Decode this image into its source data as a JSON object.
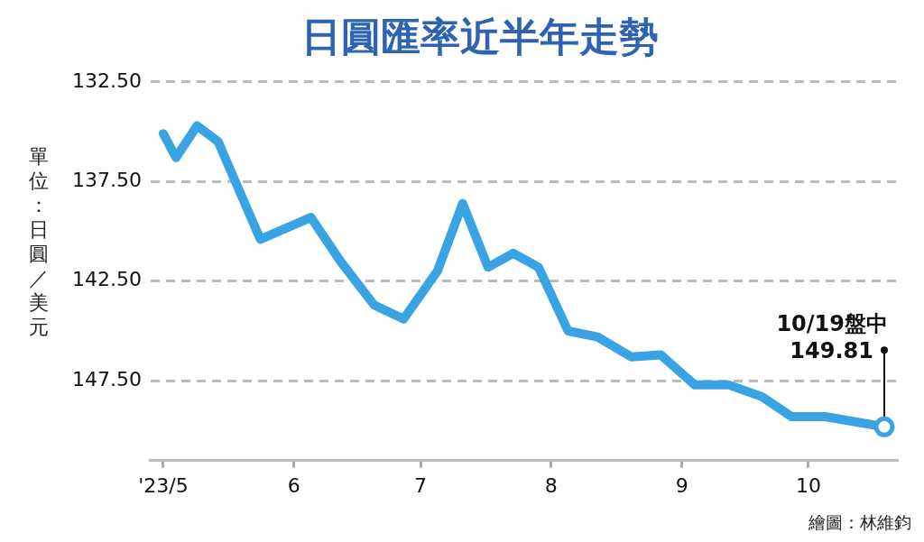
{
  "chart_data": {
    "type": "line",
    "title": "日圓匯率近半年走勢",
    "ylabel": "單位：日圓／美元",
    "x": [
      "2023-05-01",
      "2023-05-04",
      "2023-05-09",
      "2023-05-14",
      "2023-05-24",
      "2023-06-05",
      "2023-06-12",
      "2023-06-20",
      "2023-06-27",
      "2023-07-05",
      "2023-07-11",
      "2023-07-17",
      "2023-07-23",
      "2023-07-29",
      "2023-08-05",
      "2023-08-12",
      "2023-08-20",
      "2023-08-27",
      "2023-09-04",
      "2023-09-12",
      "2023-09-20",
      "2023-09-27",
      "2023-10-05",
      "2023-10-19"
    ],
    "series": [
      {
        "color": "#3aa3e3",
        "values": [
          135.1,
          136.3,
          134.7,
          135.5,
          140.4,
          139.3,
          141.5,
          143.7,
          144.4,
          142.0,
          138.6,
          141.8,
          141.1,
          141.8,
          145.0,
          145.3,
          146.3,
          146.2,
          147.7,
          147.7,
          148.3,
          149.3,
          149.3,
          149.81
        ]
      }
    ],
    "xlim": [
      "2023-04-28",
      "2023-10-22"
    ],
    "xticks": [
      {
        "value": "2023-05-01",
        "label": "'23/5"
      },
      {
        "value": "2023-06-01",
        "label": "6"
      },
      {
        "value": "2023-07-01",
        "label": "7"
      },
      {
        "value": "2023-08-01",
        "label": "8"
      },
      {
        "value": "2023-09-01",
        "label": "9"
      },
      {
        "value": "2023-10-01",
        "label": "10"
      }
    ],
    "ylim": [
      151.5,
      132.5
    ],
    "yticks": [
      {
        "value": 132.5,
        "label": "132.50"
      },
      {
        "value": 137.5,
        "label": "137.50"
      },
      {
        "value": 142.5,
        "label": "142.50"
      },
      {
        "value": 147.5,
        "label": "147.50"
      }
    ],
    "grid": "y",
    "marker": "none",
    "line_style": "solid",
    "annotations": [
      {
        "text": "10/19盤中\n149.81",
        "x": "2023-10-19",
        "y": 149.81
      },
      "繪圖：林維鈞"
    ]
  }
}
